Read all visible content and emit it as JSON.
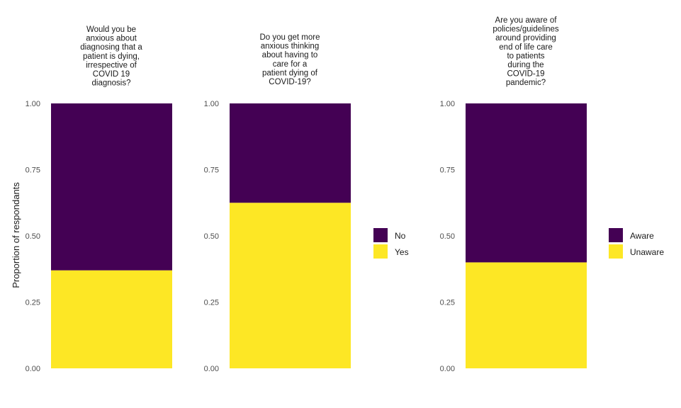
{
  "ylabel": "Proportion of respondants",
  "chart_data": [
    {
      "type": "bar",
      "stacked": true,
      "title_lines": [
        "Would you be",
        "anxious about",
        "diagnosing that a",
        "patient is dying,",
        "irrespective of",
        "COVID 19",
        "diagnosis?"
      ],
      "categories": [
        ""
      ],
      "series": [
        {
          "name": "No",
          "values": [
            0.63
          ],
          "color": "#440154"
        },
        {
          "name": "Yes",
          "values": [
            0.37
          ],
          "color": "#FDE725"
        }
      ],
      "ylim": [
        0,
        1
      ],
      "yticks": [
        "0.00",
        "0.25",
        "0.50",
        "0.75",
        "1.00"
      ],
      "legend": null
    },
    {
      "type": "bar",
      "stacked": true,
      "title_lines": [
        "Do you get more",
        "anxious thinking",
        "about having to",
        "care for a",
        "patient dying of",
        "COVID-19?"
      ],
      "categories": [
        ""
      ],
      "series": [
        {
          "name": "No",
          "values": [
            0.375
          ],
          "color": "#440154"
        },
        {
          "name": "Yes",
          "values": [
            0.625
          ],
          "color": "#FDE725"
        }
      ],
      "ylim": [
        0,
        1
      ],
      "yticks": [
        "0.00",
        "0.25",
        "0.50",
        "0.75",
        "1.00"
      ],
      "legend": [
        "No",
        "Yes"
      ]
    },
    {
      "type": "bar",
      "stacked": true,
      "title_lines": [
        "Are you aware of",
        "policies/guidelines",
        "around providing",
        "end of life care",
        "to patients",
        "during the",
        "COVID-19",
        "pandemic?"
      ],
      "categories": [
        ""
      ],
      "series": [
        {
          "name": "Aware",
          "values": [
            0.6
          ],
          "color": "#440154"
        },
        {
          "name": "Unaware",
          "values": [
            0.4
          ],
          "color": "#FDE725"
        }
      ],
      "ylim": [
        0,
        1
      ],
      "yticks": [
        "0.00",
        "0.25",
        "0.50",
        "0.75",
        "1.00"
      ],
      "legend": [
        "Aware",
        "Unaware"
      ]
    }
  ]
}
